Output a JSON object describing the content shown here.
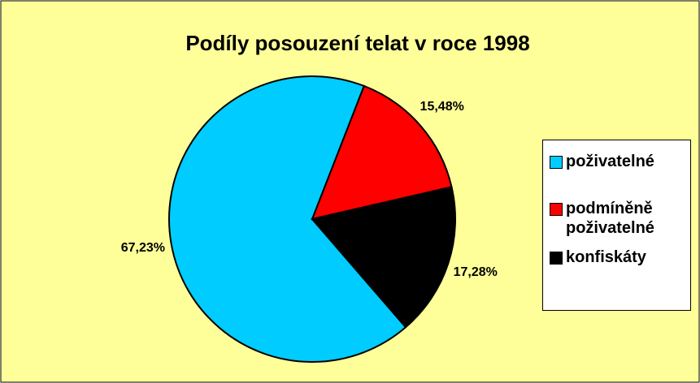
{
  "chart_data": {
    "type": "pie",
    "title": "Podíly posouzení telat v roce 1998",
    "categories": [
      "poživatelné",
      "podmíněně poživatelné",
      "konfiskáty"
    ],
    "values": [
      67.23,
      15.48,
      17.28
    ],
    "value_labels": [
      "67,23%",
      "15,48%",
      "17,28%"
    ],
    "colors": [
      "#00ccff",
      "#ff0000",
      "#000000"
    ],
    "legend": "right"
  }
}
